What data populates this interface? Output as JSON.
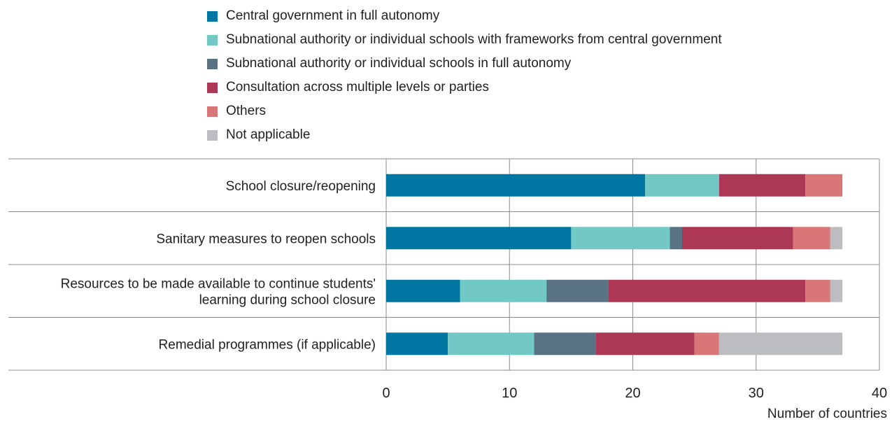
{
  "chart_data": {
    "type": "bar",
    "orientation": "horizontal",
    "stacked": true,
    "categories": [
      "School closure/reopening",
      "Sanitary measures to reopen schools",
      "Resources to be made available to continue students' learning during school closure",
      "Remedial programmes (if applicable)"
    ],
    "category_lines": [
      [
        "School closure/reopening"
      ],
      [
        "Sanitary measures to reopen schools"
      ],
      [
        "Resources to be made available to continue students'",
        "learning during school closure"
      ],
      [
        "Remedial programmes (if applicable)"
      ]
    ],
    "series": [
      {
        "name": "Central government in full autonomy",
        "color": "#0077a3",
        "values": [
          21,
          15,
          6,
          5
        ]
      },
      {
        "name": "Subnational authority or individual schools with frameworks from central government",
        "color": "#72c8c5",
        "values": [
          6,
          8,
          7,
          7
        ]
      },
      {
        "name": "Subnational authority or individual schools in full autonomy",
        "color": "#5a7384",
        "values": [
          0,
          1,
          5,
          5
        ]
      },
      {
        "name": "Consultation across multiple levels or parties",
        "color": "#ad3856",
        "values": [
          7,
          9,
          16,
          8
        ]
      },
      {
        "name": "Others",
        "color": "#d97778",
        "values": [
          3,
          3,
          2,
          2
        ]
      },
      {
        "name": "Not applicable",
        "color": "#bcbdc0",
        "values": [
          0,
          1,
          1,
          10
        ]
      }
    ],
    "xlabel": "Number of countries",
    "xlim": [
      0,
      40
    ],
    "xticks": [
      0,
      10,
      20,
      30,
      40
    ],
    "grid": "vertical",
    "legend_position": "top"
  }
}
